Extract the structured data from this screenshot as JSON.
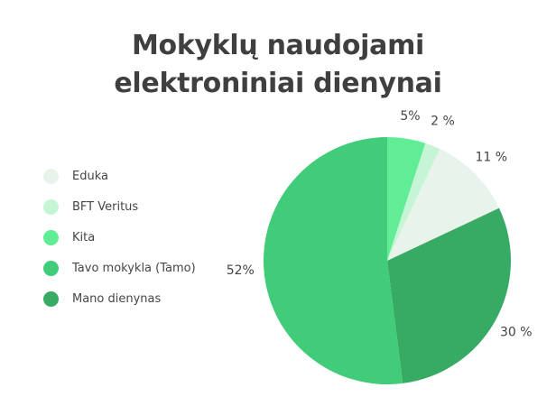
{
  "title_lines": [
    "Mokyklų naudojami",
    "elektroniniai dienynai"
  ],
  "chart_data": {
    "type": "pie",
    "title": "Mokyklų naudojami elektroniniai dienynai",
    "legend_position": "left",
    "slices": [
      {
        "name": "Eduka",
        "value": 11,
        "label": "11 %",
        "color": "#e8f3ec"
      },
      {
        "name": "BFT Veritus",
        "value": 2,
        "label": "2 %",
        "color": "#c6f5d6"
      },
      {
        "name": "Kita",
        "value": 5,
        "label": "5%",
        "color": "#61ec96"
      },
      {
        "name": "Tavo mokykla (Tamo)",
        "value": 52,
        "label": "52%",
        "color": "#40cc78"
      },
      {
        "name": "Mano dienynas",
        "value": 30,
        "label": "30 %",
        "color": "#37aa64"
      }
    ],
    "draw_order": [
      "Kita",
      "BFT Veritus",
      "Eduka",
      "Mano dienynas",
      "Tavo mokykla (Tamo)"
    ]
  }
}
